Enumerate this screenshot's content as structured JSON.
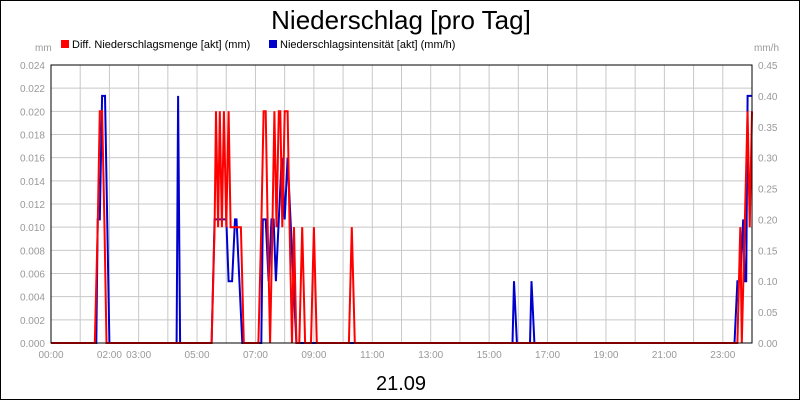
{
  "chart_data": {
    "type": "line",
    "title": "Niederschlag [pro Tag]",
    "date_label": "21.09",
    "legend_placement": "top",
    "grid": true,
    "x_range_hours": [
      0,
      24
    ],
    "x_ticks": [
      {
        "label": "00:00",
        "h": 0
      },
      {
        "label": "02:00",
        "h": 2
      },
      {
        "label": "03:00",
        "h": 3
      },
      {
        "label": "05:00",
        "h": 5
      },
      {
        "label": "07:00",
        "h": 7
      },
      {
        "label": "09:00",
        "h": 9
      },
      {
        "label": "11:00",
        "h": 11
      },
      {
        "label": "13:00",
        "h": 13
      },
      {
        "label": "15:00",
        "h": 15
      },
      {
        "label": "17:00",
        "h": 17
      },
      {
        "label": "19:00",
        "h": 19
      },
      {
        "label": "21:00",
        "h": 21
      },
      {
        "label": "23:00",
        "h": 23
      }
    ],
    "left_axis": {
      "unit": "mm",
      "ylim": [
        0,
        0.024
      ],
      "ticks": [
        "0.000",
        "0.002",
        "0.004",
        "0.006",
        "0.008",
        "0.010",
        "0.012",
        "0.014",
        "0.016",
        "0.018",
        "0.020",
        "0.022",
        "0.024"
      ]
    },
    "right_axis": {
      "unit": "mm/h",
      "ylim": [
        0,
        0.45
      ],
      "ticks": [
        "0.00",
        "0.05",
        "0.10",
        "0.15",
        "0.20",
        "0.25",
        "0.30",
        "0.35",
        "0.40",
        "0.45"
      ]
    },
    "series": [
      {
        "name": "Diff. Niederschlagsmenge [akt] (mm)",
        "color": "#ff0000",
        "axis": "left",
        "points": [
          [
            0,
            0
          ],
          [
            1.5,
            0
          ],
          [
            1.6,
            0.01
          ],
          [
            1.67,
            0.02
          ],
          [
            1.75,
            0.02
          ],
          [
            1.83,
            0.01
          ],
          [
            1.9,
            0
          ],
          [
            5.5,
            0
          ],
          [
            5.6,
            0.01
          ],
          [
            5.65,
            0.02
          ],
          [
            5.72,
            0.01
          ],
          [
            5.78,
            0.02
          ],
          [
            5.85,
            0.01
          ],
          [
            5.92,
            0.02
          ],
          [
            6.0,
            0.01
          ],
          [
            6.08,
            0.02
          ],
          [
            6.15,
            0.01
          ],
          [
            6.3,
            0.01
          ],
          [
            6.4,
            0.01
          ],
          [
            6.5,
            0.01
          ],
          [
            6.6,
            0
          ],
          [
            7.1,
            0
          ],
          [
            7.2,
            0.01
          ],
          [
            7.28,
            0.02
          ],
          [
            7.35,
            0.02
          ],
          [
            7.42,
            0.01
          ],
          [
            7.5,
            0
          ],
          [
            7.58,
            0.01
          ],
          [
            7.65,
            0.02
          ],
          [
            7.72,
            0.01
          ],
          [
            7.8,
            0.02
          ],
          [
            7.85,
            0.02
          ],
          [
            7.92,
            0.01
          ],
          [
            8.0,
            0.02
          ],
          [
            8.1,
            0.02
          ],
          [
            8.17,
            0.01
          ],
          [
            8.25,
            0
          ],
          [
            8.32,
            0.01
          ],
          [
            8.4,
            0
          ],
          [
            8.5,
            0
          ],
          [
            8.6,
            0.01
          ],
          [
            8.7,
            0
          ],
          [
            8.9,
            0
          ],
          [
            9.0,
            0.01
          ],
          [
            9.1,
            0
          ],
          [
            10.2,
            0
          ],
          [
            10.3,
            0.01
          ],
          [
            10.4,
            0
          ],
          [
            23.5,
            0
          ],
          [
            23.6,
            0.01
          ],
          [
            23.65,
            0
          ],
          [
            23.75,
            0.01
          ],
          [
            23.85,
            0.02
          ],
          [
            23.92,
            0.01
          ],
          [
            24,
            0.02
          ]
        ]
      },
      {
        "name": "Niederschlagsintensität [akt] (mm/h)",
        "color": "#0000cc",
        "axis": "right",
        "points": [
          [
            0,
            0
          ],
          [
            1.55,
            0
          ],
          [
            1.6,
            0.2
          ],
          [
            1.67,
            0.2
          ],
          [
            1.75,
            0.4
          ],
          [
            1.85,
            0.4
          ],
          [
            2.0,
            0
          ],
          [
            4.3,
            0
          ],
          [
            4.35,
            0.4
          ],
          [
            4.42,
            0
          ],
          [
            5.5,
            0
          ],
          [
            5.6,
            0.2
          ],
          [
            6.0,
            0.2
          ],
          [
            6.08,
            0.1
          ],
          [
            6.2,
            0.1
          ],
          [
            6.3,
            0.2
          ],
          [
            6.35,
            0.2
          ],
          [
            6.45,
            0.1
          ],
          [
            6.55,
            0
          ],
          [
            7.2,
            0
          ],
          [
            7.25,
            0.2
          ],
          [
            7.35,
            0.2
          ],
          [
            7.45,
            0.1
          ],
          [
            7.55,
            0.2
          ],
          [
            7.62,
            0.2
          ],
          [
            7.7,
            0.1
          ],
          [
            7.8,
            0.2
          ],
          [
            7.9,
            0.3
          ],
          [
            8.0,
            0.2
          ],
          [
            8.1,
            0.3
          ],
          [
            8.2,
            0.2
          ],
          [
            8.3,
            0.1
          ],
          [
            8.4,
            0
          ],
          [
            15.8,
            0
          ],
          [
            15.85,
            0.1
          ],
          [
            15.95,
            0
          ],
          [
            16.4,
            0
          ],
          [
            16.45,
            0.1
          ],
          [
            16.55,
            0
          ],
          [
            23.4,
            0
          ],
          [
            23.5,
            0.1
          ],
          [
            23.6,
            0.1
          ],
          [
            23.7,
            0.2
          ],
          [
            23.75,
            0.1
          ],
          [
            23.8,
            0.1
          ],
          [
            23.85,
            0.4
          ],
          [
            23.92,
            0.4
          ],
          [
            24,
            0.4
          ]
        ]
      }
    ]
  }
}
